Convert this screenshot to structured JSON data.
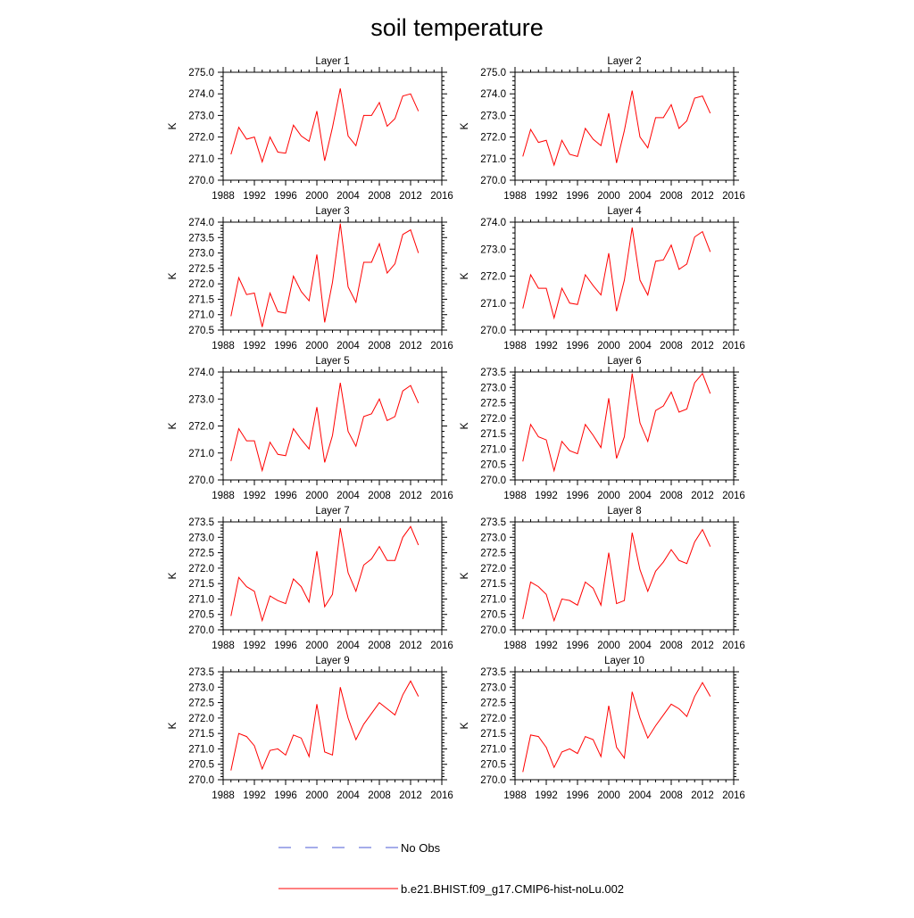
{
  "figure": {
    "title": "soil temperature",
    "legend": [
      {
        "label": "No Obs",
        "color": "#4b5bd6",
        "style": "dashed"
      },
      {
        "label": "b.e21.BHIST.f09_g17.CMIP6-hist-noLu.002",
        "color": "#ff0000",
        "style": "solid"
      }
    ]
  },
  "chart_data": [
    {
      "type": "line",
      "title": "Layer 1",
      "ylabel": "K",
      "xlim": [
        1988,
        2016
      ],
      "ylim": [
        270.0,
        275.0
      ],
      "xticks": [
        "1988",
        "1992",
        "1996",
        "2000",
        "2004",
        "2008",
        "2012",
        "2016"
      ],
      "yticks": [
        "270.0",
        "271.0",
        "272.0",
        "273.0",
        "274.0",
        "275.0"
      ],
      "x": [
        1989,
        1990,
        1991,
        1992,
        1993,
        1994,
        1995,
        1996,
        1997,
        1998,
        1999,
        2000,
        2001,
        2002,
        2003,
        2004,
        2005,
        2006,
        2007,
        2008,
        2009,
        2010,
        2011,
        2012,
        2013
      ],
      "series": [
        {
          "name": "b.e21.BHIST.f09_g17.CMIP6-hist-noLu.002",
          "color": "#ff0000",
          "values": [
            271.2,
            272.45,
            271.9,
            272.0,
            270.85,
            272.0,
            271.3,
            271.25,
            272.55,
            272.05,
            271.8,
            273.2,
            270.9,
            272.45,
            274.25,
            272.05,
            271.6,
            273.0,
            273.0,
            273.6,
            272.5,
            272.85,
            273.9,
            274.0,
            273.2
          ]
        }
      ]
    },
    {
      "type": "line",
      "title": "Layer 2",
      "ylabel": "K",
      "xlim": [
        1988,
        2016
      ],
      "ylim": [
        270.0,
        275.0
      ],
      "xticks": [
        "1988",
        "1992",
        "1996",
        "2000",
        "2004",
        "2008",
        "2012",
        "2016"
      ],
      "yticks": [
        "270.0",
        "271.0",
        "272.0",
        "273.0",
        "274.0",
        "275.0"
      ],
      "x": [
        1989,
        1990,
        1991,
        1992,
        1993,
        1994,
        1995,
        1996,
        1997,
        1998,
        1999,
        2000,
        2001,
        2002,
        2003,
        2004,
        2005,
        2006,
        2007,
        2008,
        2009,
        2010,
        2011,
        2012,
        2013
      ],
      "series": [
        {
          "name": "b.e21.BHIST.f09_g17.CMIP6-hist-noLu.002",
          "color": "#ff0000",
          "values": [
            271.1,
            272.35,
            271.75,
            271.85,
            270.7,
            271.85,
            271.2,
            271.1,
            272.4,
            271.9,
            271.6,
            273.1,
            270.8,
            272.3,
            274.15,
            272.0,
            271.5,
            272.9,
            272.9,
            273.5,
            272.4,
            272.75,
            273.8,
            273.9,
            273.1
          ]
        }
      ]
    },
    {
      "type": "line",
      "title": "Layer 3",
      "ylabel": "K",
      "xlim": [
        1988,
        2016
      ],
      "ylim": [
        270.5,
        274.0
      ],
      "xticks": [
        "1988",
        "1992",
        "1996",
        "2000",
        "2004",
        "2008",
        "2012",
        "2016"
      ],
      "yticks": [
        "270.5",
        "271.0",
        "271.5",
        "272.0",
        "272.5",
        "273.0",
        "273.5",
        "274.0"
      ],
      "x": [
        1989,
        1990,
        1991,
        1992,
        1993,
        1994,
        1995,
        1996,
        1997,
        1998,
        1999,
        2000,
        2001,
        2002,
        2003,
        2004,
        2005,
        2006,
        2007,
        2008,
        2009,
        2010,
        2011,
        2012,
        2013
      ],
      "series": [
        {
          "name": "b.e21.BHIST.f09_g17.CMIP6-hist-noLu.002",
          "color": "#ff0000",
          "values": [
            270.95,
            272.2,
            271.65,
            271.7,
            270.6,
            271.7,
            271.1,
            271.05,
            272.25,
            271.75,
            271.45,
            272.95,
            270.75,
            272.05,
            273.95,
            271.9,
            271.4,
            272.7,
            272.7,
            273.3,
            272.35,
            272.65,
            273.6,
            273.75,
            273.0
          ]
        }
      ]
    },
    {
      "type": "line",
      "title": "Layer 4",
      "ylabel": "K",
      "xlim": [
        1988,
        2016
      ],
      "ylim": [
        270.0,
        274.0
      ],
      "xticks": [
        "1988",
        "1992",
        "1996",
        "2000",
        "2004",
        "2008",
        "2012",
        "2016"
      ],
      "yticks": [
        "270.0",
        "271.0",
        "272.0",
        "273.0",
        "274.0"
      ],
      "x": [
        1989,
        1990,
        1991,
        1992,
        1993,
        1994,
        1995,
        1996,
        1997,
        1998,
        1999,
        2000,
        2001,
        2002,
        2003,
        2004,
        2005,
        2006,
        2007,
        2008,
        2009,
        2010,
        2011,
        2012,
        2013
      ],
      "series": [
        {
          "name": "b.e21.BHIST.f09_g17.CMIP6-hist-noLu.002",
          "color": "#ff0000",
          "values": [
            270.8,
            272.05,
            271.55,
            271.55,
            270.45,
            271.55,
            271.0,
            270.95,
            272.05,
            271.65,
            271.3,
            272.85,
            270.7,
            271.85,
            273.8,
            271.85,
            271.3,
            272.55,
            272.6,
            273.15,
            272.25,
            272.45,
            273.45,
            273.65,
            272.9
          ]
        }
      ]
    },
    {
      "type": "line",
      "title": "Layer 5",
      "ylabel": "K",
      "xlim": [
        1988,
        2016
      ],
      "ylim": [
        270.0,
        274.0
      ],
      "xticks": [
        "1988",
        "1992",
        "1996",
        "2000",
        "2004",
        "2008",
        "2012",
        "2016"
      ],
      "yticks": [
        "270.0",
        "271.0",
        "272.0",
        "273.0",
        "274.0"
      ],
      "x": [
        1989,
        1990,
        1991,
        1992,
        1993,
        1994,
        1995,
        1996,
        1997,
        1998,
        1999,
        2000,
        2001,
        2002,
        2003,
        2004,
        2005,
        2006,
        2007,
        2008,
        2009,
        2010,
        2011,
        2012,
        2013
      ],
      "series": [
        {
          "name": "b.e21.BHIST.f09_g17.CMIP6-hist-noLu.002",
          "color": "#ff0000",
          "values": [
            270.7,
            271.9,
            271.45,
            271.45,
            270.35,
            271.4,
            270.95,
            270.9,
            271.9,
            271.5,
            271.15,
            272.7,
            270.65,
            271.65,
            273.6,
            271.8,
            271.25,
            272.35,
            272.45,
            273.0,
            272.2,
            272.35,
            273.3,
            273.5,
            272.85
          ]
        }
      ]
    },
    {
      "type": "line",
      "title": "Layer 6",
      "ylabel": "K",
      "xlim": [
        1988,
        2016
      ],
      "ylim": [
        270.0,
        273.5
      ],
      "xticks": [
        "1988",
        "1992",
        "1996",
        "2000",
        "2004",
        "2008",
        "2012",
        "2016"
      ],
      "yticks": [
        "270.0",
        "270.5",
        "271.0",
        "271.5",
        "272.0",
        "272.5",
        "273.0",
        "273.5"
      ],
      "x": [
        1989,
        1990,
        1991,
        1992,
        1993,
        1994,
        1995,
        1996,
        1997,
        1998,
        1999,
        2000,
        2001,
        2002,
        2003,
        2004,
        2005,
        2006,
        2007,
        2008,
        2009,
        2010,
        2011,
        2012,
        2013
      ],
      "series": [
        {
          "name": "b.e21.BHIST.f09_g17.CMIP6-hist-noLu.002",
          "color": "#ff0000",
          "values": [
            270.6,
            271.8,
            271.4,
            271.3,
            270.3,
            271.25,
            270.95,
            270.85,
            271.8,
            271.45,
            271.05,
            272.65,
            270.7,
            271.4,
            273.45,
            271.85,
            271.25,
            272.25,
            272.4,
            272.85,
            272.2,
            272.3,
            273.15,
            273.45,
            272.8
          ]
        }
      ]
    },
    {
      "type": "line",
      "title": "Layer 7",
      "ylabel": "K",
      "xlim": [
        1988,
        2016
      ],
      "ylim": [
        270.0,
        273.5
      ],
      "xticks": [
        "1988",
        "1992",
        "1996",
        "2000",
        "2004",
        "2008",
        "2012",
        "2016"
      ],
      "yticks": [
        "270.0",
        "270.5",
        "271.0",
        "271.5",
        "272.0",
        "272.5",
        "273.0",
        "273.5"
      ],
      "x": [
        1989,
        1990,
        1991,
        1992,
        1993,
        1994,
        1995,
        1996,
        1997,
        1998,
        1999,
        2000,
        2001,
        2002,
        2003,
        2004,
        2005,
        2006,
        2007,
        2008,
        2009,
        2010,
        2011,
        2012,
        2013
      ],
      "series": [
        {
          "name": "b.e21.BHIST.f09_g17.CMIP6-hist-noLu.002",
          "color": "#ff0000",
          "values": [
            270.45,
            271.7,
            271.4,
            271.25,
            270.3,
            271.1,
            270.95,
            270.85,
            271.65,
            271.4,
            270.9,
            272.55,
            270.75,
            271.15,
            273.3,
            271.85,
            271.25,
            272.1,
            272.3,
            272.7,
            272.25,
            272.25,
            273.0,
            273.35,
            272.75
          ]
        }
      ]
    },
    {
      "type": "line",
      "title": "Layer 8",
      "ylabel": "K",
      "xlim": [
        1988,
        2016
      ],
      "ylim": [
        270.0,
        273.5
      ],
      "xticks": [
        "1988",
        "1992",
        "1996",
        "2000",
        "2004",
        "2008",
        "2012",
        "2016"
      ],
      "yticks": [
        "270.0",
        "270.5",
        "271.0",
        "271.5",
        "272.0",
        "272.5",
        "273.0",
        "273.5"
      ],
      "x": [
        1989,
        1990,
        1991,
        1992,
        1993,
        1994,
        1995,
        1996,
        1997,
        1998,
        1999,
        2000,
        2001,
        2002,
        2003,
        2004,
        2005,
        2006,
        2007,
        2008,
        2009,
        2010,
        2011,
        2012,
        2013
      ],
      "series": [
        {
          "name": "b.e21.BHIST.f09_g17.CMIP6-hist-noLu.002",
          "color": "#ff0000",
          "values": [
            270.35,
            271.55,
            271.4,
            271.15,
            270.3,
            271.0,
            270.95,
            270.8,
            271.55,
            271.35,
            270.8,
            272.5,
            270.85,
            270.95,
            273.15,
            271.95,
            271.25,
            271.9,
            272.2,
            272.6,
            272.25,
            272.15,
            272.85,
            273.25,
            272.7
          ]
        }
      ]
    },
    {
      "type": "line",
      "title": "Layer 9",
      "ylabel": "K",
      "xlim": [
        1988,
        2016
      ],
      "ylim": [
        270.0,
        273.5
      ],
      "xticks": [
        "1988",
        "1992",
        "1996",
        "2000",
        "2004",
        "2008",
        "2012",
        "2016"
      ],
      "yticks": [
        "270.0",
        "270.5",
        "271.0",
        "271.5",
        "272.0",
        "272.5",
        "273.0",
        "273.5"
      ],
      "x": [
        1989,
        1990,
        1991,
        1992,
        1993,
        1994,
        1995,
        1996,
        1997,
        1998,
        1999,
        2000,
        2001,
        2002,
        2003,
        2004,
        2005,
        2006,
        2007,
        2008,
        2009,
        2010,
        2011,
        2012,
        2013
      ],
      "series": [
        {
          "name": "b.e21.BHIST.f09_g17.CMIP6-hist-noLu.002",
          "color": "#ff0000",
          "values": [
            270.3,
            271.5,
            271.4,
            271.1,
            270.35,
            270.95,
            271.0,
            270.8,
            271.45,
            271.35,
            270.75,
            272.45,
            270.9,
            270.8,
            273.0,
            272.0,
            271.3,
            271.8,
            272.15,
            272.5,
            272.3,
            272.1,
            272.75,
            273.2,
            272.7
          ]
        }
      ]
    },
    {
      "type": "line",
      "title": "Layer 10",
      "ylabel": "K",
      "xlim": [
        1988,
        2016
      ],
      "ylim": [
        270.0,
        273.5
      ],
      "xticks": [
        "1988",
        "1992",
        "1996",
        "2000",
        "2004",
        "2008",
        "2012",
        "2016"
      ],
      "yticks": [
        "270.0",
        "270.5",
        "271.0",
        "271.5",
        "272.0",
        "272.5",
        "273.0",
        "273.5"
      ],
      "x": [
        1989,
        1990,
        1991,
        1992,
        1993,
        1994,
        1995,
        1996,
        1997,
        1998,
        1999,
        2000,
        2001,
        2002,
        2003,
        2004,
        2005,
        2006,
        2007,
        2008,
        2009,
        2010,
        2011,
        2012,
        2013
      ],
      "series": [
        {
          "name": "b.e21.BHIST.f09_g17.CMIP6-hist-noLu.002",
          "color": "#ff0000",
          "values": [
            270.25,
            271.45,
            271.4,
            271.05,
            270.4,
            270.9,
            271.0,
            270.85,
            271.4,
            271.3,
            270.75,
            272.4,
            271.05,
            270.7,
            272.85,
            272.0,
            271.35,
            271.75,
            272.1,
            272.45,
            272.3,
            272.05,
            272.7,
            273.15,
            272.7
          ]
        }
      ]
    }
  ]
}
